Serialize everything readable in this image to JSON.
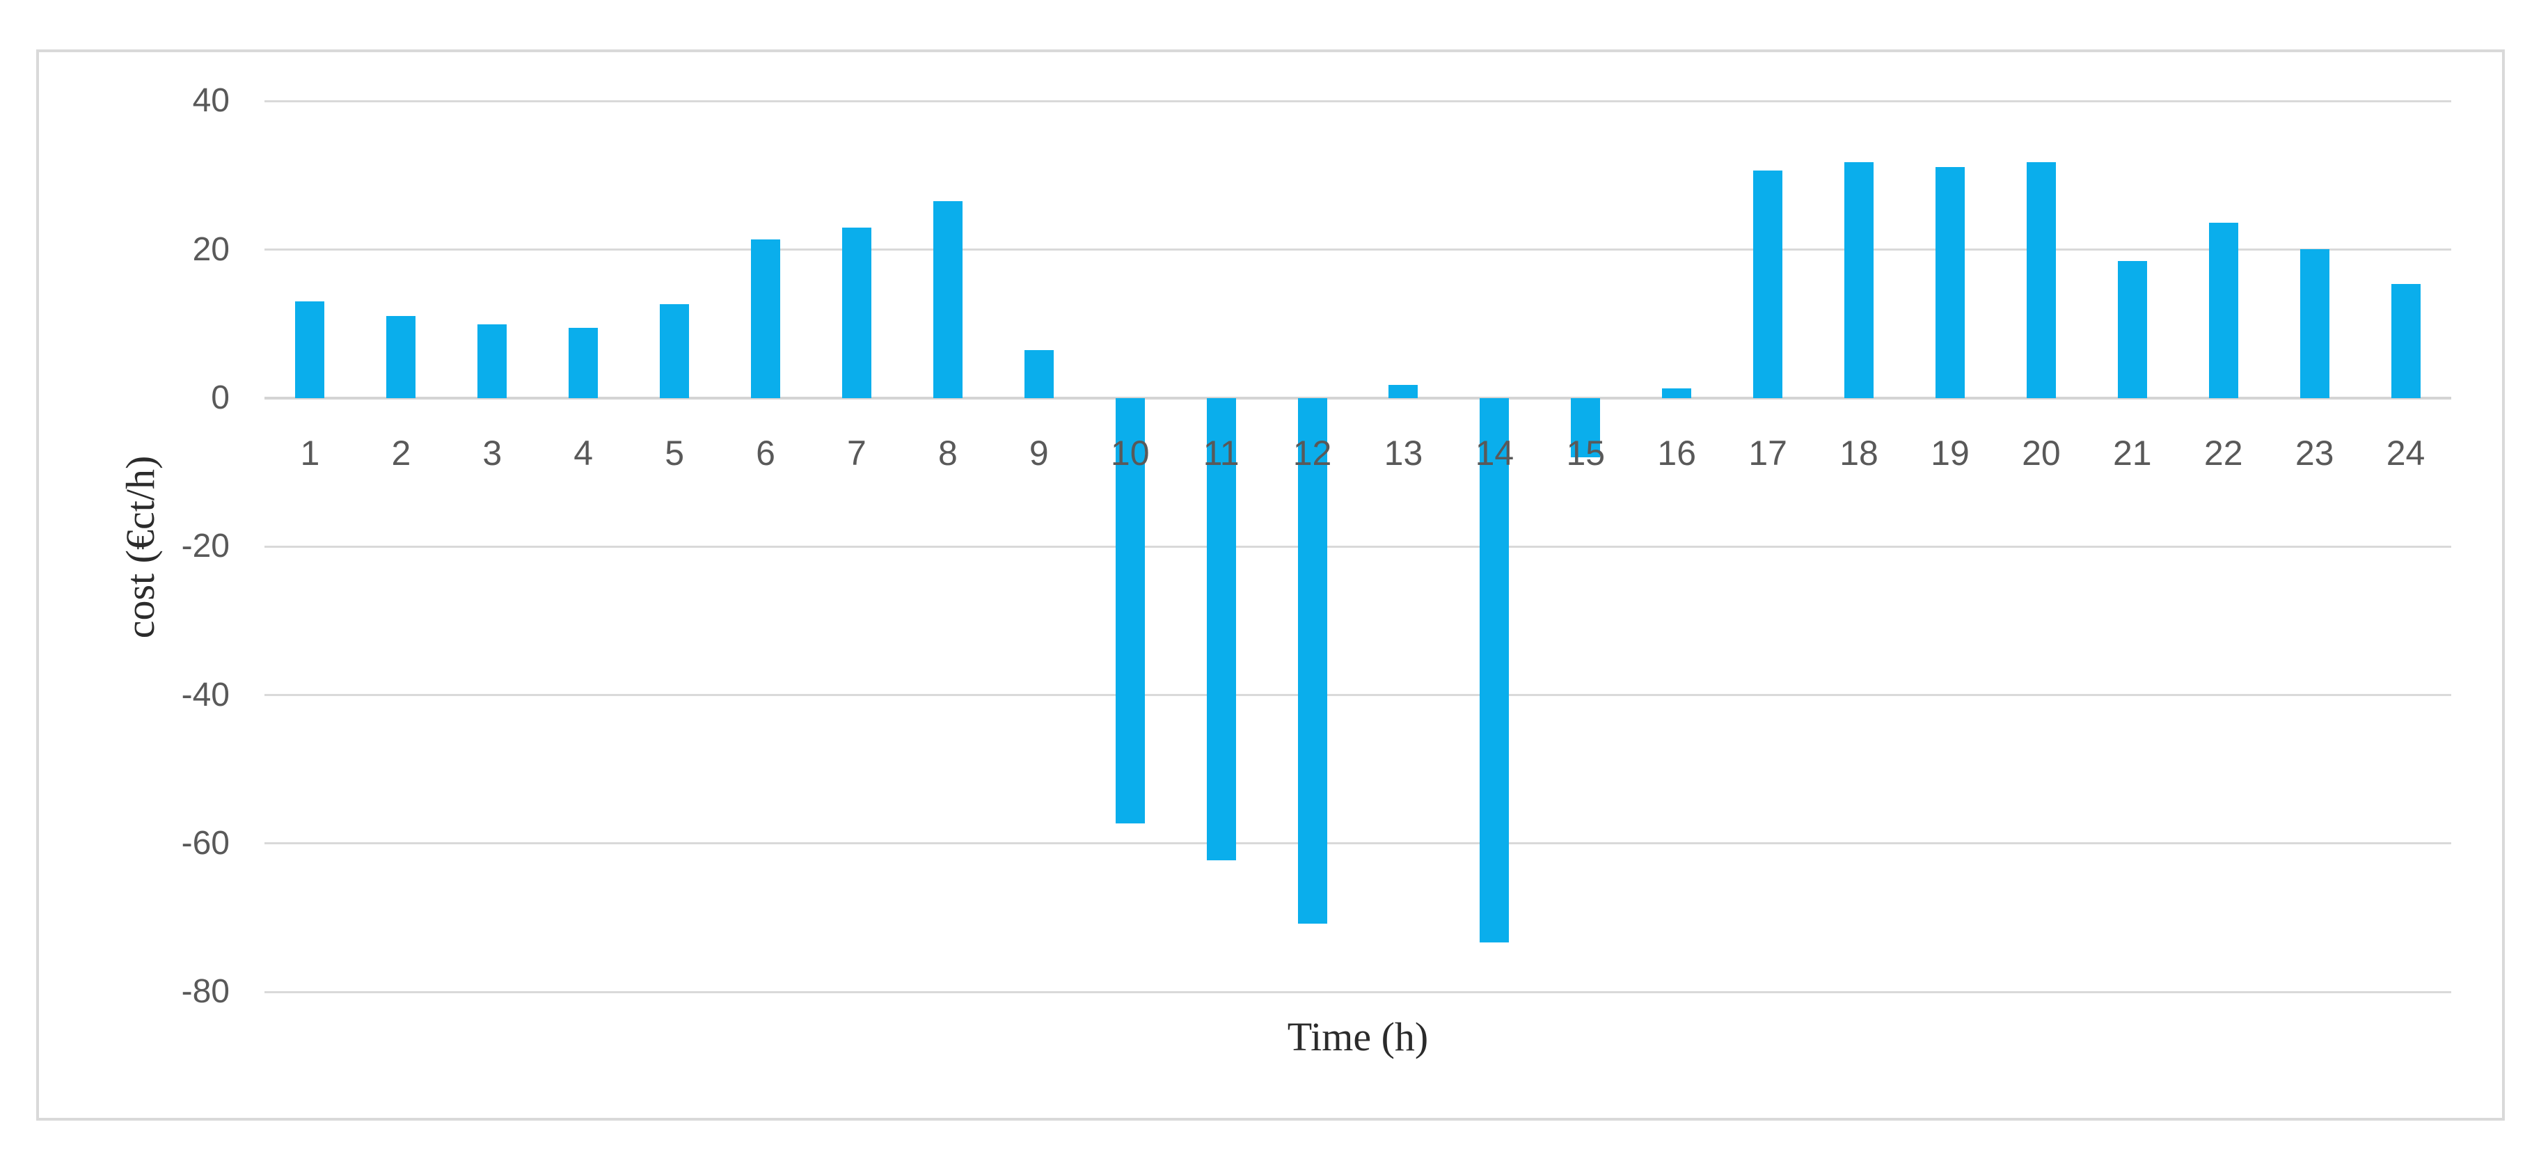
{
  "chart_data": {
    "type": "bar",
    "title": "",
    "xlabel": "Time (h)",
    "ylabel": "cost (€ct/h)",
    "categories": [
      "1",
      "2",
      "3",
      "4",
      "5",
      "6",
      "7",
      "8",
      "9",
      "10",
      "11",
      "12",
      "13",
      "14",
      "15",
      "16",
      "17",
      "18",
      "19",
      "20",
      "21",
      "22",
      "23",
      "24"
    ],
    "values": [
      13.0,
      11.1,
      9.9,
      9.5,
      12.7,
      21.4,
      23.0,
      26.5,
      6.5,
      -57.3,
      -62.3,
      -70.8,
      1.8,
      -73.3,
      -8.0,
      1.3,
      30.7,
      31.8,
      31.1,
      31.8,
      18.5,
      23.6,
      20.1,
      15.4
    ],
    "y_ticks": [
      40,
      20,
      0,
      -20,
      -40,
      -60,
      -80
    ],
    "ylim": [
      -80,
      40
    ],
    "grid": true,
    "legend": false,
    "series_name": "cost",
    "bar_color": "#0aaeec",
    "grid_color": "#d9d9d9",
    "axis_line_color": "#d4d4d4",
    "tick_label_color": "#595959",
    "axis_title_color": "#2b2b2b"
  }
}
